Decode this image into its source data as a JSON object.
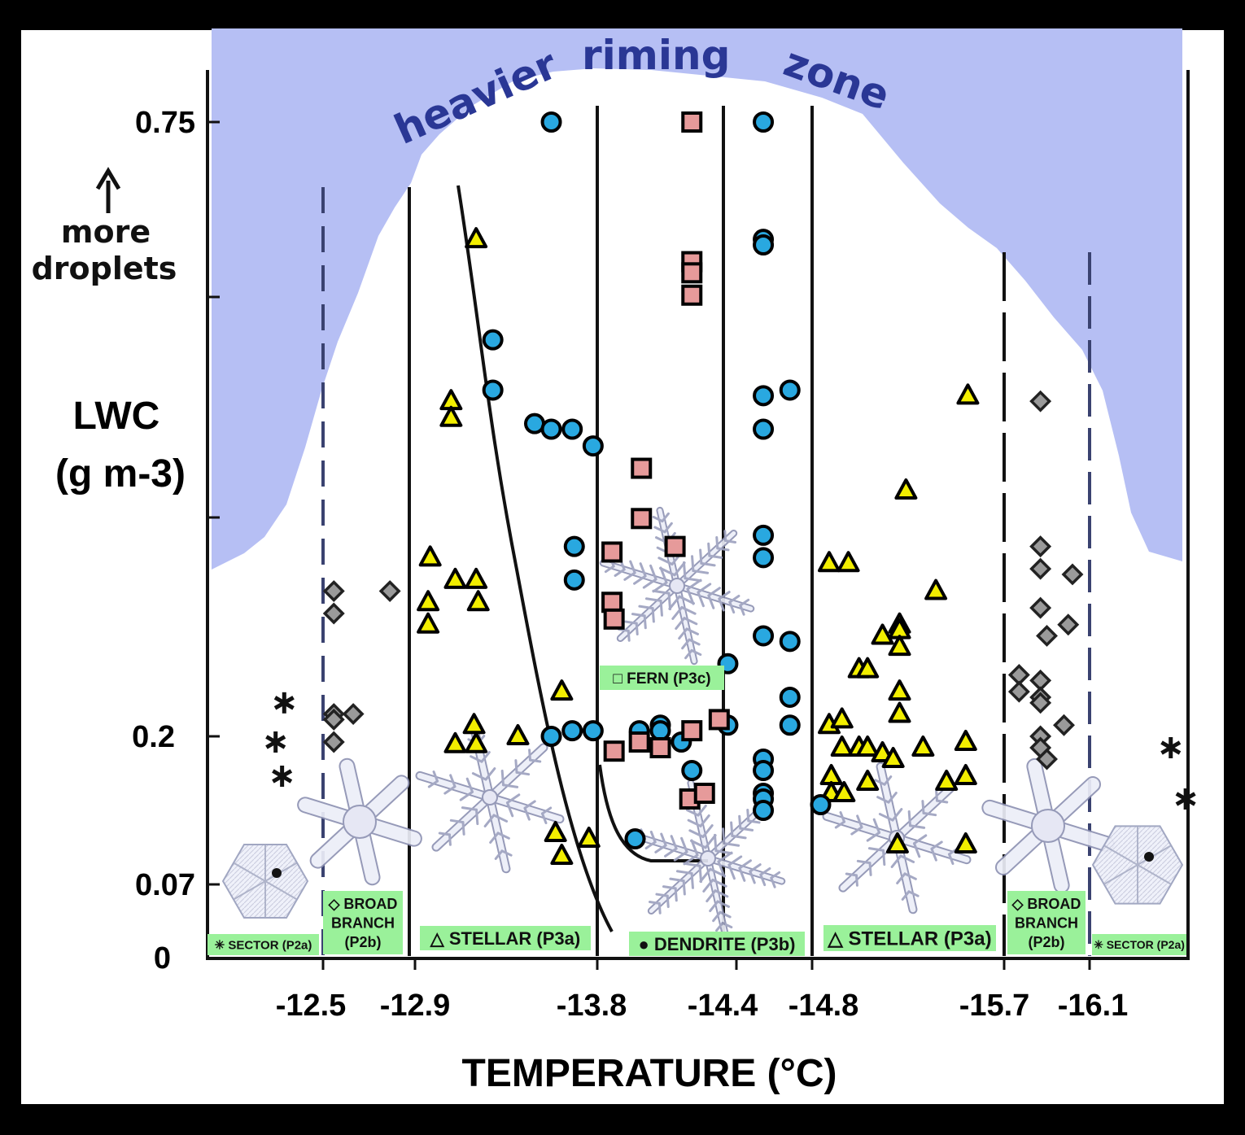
{
  "chart_data": {
    "type": "scatter",
    "title": "",
    "xlabel": "TEMPERATURE (°C)",
    "ylabel_line1": "LWC",
    "ylabel_line2": "(g m-3)",
    "y_scale": "nonlinear",
    "x_ticks": [
      "-12.5",
      "-12.9",
      "-13.8",
      "-14.4",
      "-14.8",
      "-15.7",
      "-16.1"
    ],
    "y_ticks": [
      "0.75",
      "0.2",
      "0.07",
      "0"
    ],
    "annotation_more": "more",
    "annotation_droplets": "droplets",
    "riming_zone_words": [
      "heavier",
      "riming",
      "zone"
    ],
    "colors": {
      "riming_zone": "#b6bff4",
      "circle": "#29a8e0",
      "square": "#e69a9a",
      "triangle": "#f2ee00",
      "diamond": "#9a9a9a",
      "label_bg": "#9af19a"
    },
    "regions": [
      {
        "line1": "✳ SECTOR (P2a)",
        "line2": "",
        "line3": ""
      },
      {
        "line1": "◇ BROAD",
        "line2": "BRANCH",
        "line3": "(P2b)"
      },
      {
        "line1": "△ STELLAR (P3a)",
        "line2": "",
        "line3": ""
      },
      {
        "line1": "● DENDRITE (P3b)",
        "line2": "",
        "line3": ""
      },
      {
        "line1": "△ STELLAR (P3a)",
        "line2": "",
        "line3": ""
      },
      {
        "line1": "◇ BROAD",
        "line2": "BRANCH",
        "line3": "(P2b)"
      },
      {
        "line1": "✳ SECTOR (P2a)",
        "line2": "",
        "line3": ""
      },
      {
        "line1": "□ FERN (P3c)",
        "line2": "",
        "line3": ""
      }
    ],
    "series": [
      {
        "name": "SECTOR (P2a)",
        "marker": "star",
        "points": [
          [
            -12.32,
            0.23
          ],
          [
            -12.28,
            0.195
          ],
          [
            -12.31,
            0.165
          ],
          [
            -16.48,
            0.19
          ],
          [
            -16.55,
            0.145
          ]
        ]
      },
      {
        "name": "BROAD BRANCH (P2b)",
        "marker": "diamond",
        "points": [
          [
            -12.55,
            0.33
          ],
          [
            -12.55,
            0.31
          ],
          [
            -12.55,
            0.22
          ],
          [
            -12.55,
            0.215
          ],
          [
            -12.55,
            0.195
          ],
          [
            -12.64,
            0.22
          ],
          [
            -12.81,
            0.33
          ],
          [
            -15.77,
            0.255
          ],
          [
            -15.77,
            0.24
          ],
          [
            -15.87,
            0.5
          ],
          [
            -15.87,
            0.37
          ],
          [
            -15.87,
            0.35
          ],
          [
            -15.87,
            0.315
          ],
          [
            -15.87,
            0.25
          ],
          [
            -15.87,
            0.235
          ],
          [
            -15.87,
            0.23
          ],
          [
            -15.87,
            0.2
          ],
          [
            -15.87,
            0.19
          ],
          [
            -15.9,
            0.18
          ],
          [
            -15.9,
            0.29
          ],
          [
            -15.98,
            0.21
          ],
          [
            -16.0,
            0.3
          ],
          [
            -16.02,
            0.345
          ]
        ]
      },
      {
        "name": "STELLAR (P3a)",
        "marker": "triangle",
        "points": [
          [
            -13.0,
            0.36
          ],
          [
            -12.99,
            0.32
          ],
          [
            -12.99,
            0.3
          ],
          [
            -13.1,
            0.5
          ],
          [
            -13.1,
            0.485
          ],
          [
            -13.12,
            0.34
          ],
          [
            -13.22,
            0.34
          ],
          [
            -13.23,
            0.32
          ],
          [
            -13.22,
            0.645
          ],
          [
            -13.21,
            0.21
          ],
          [
            -13.12,
            0.193
          ],
          [
            -13.22,
            0.193
          ],
          [
            -13.42,
            0.2
          ],
          [
            -13.63,
            0.24
          ],
          [
            -13.6,
            0.115
          ],
          [
            -13.76,
            0.11
          ],
          [
            -13.63,
            0.095
          ],
          [
            -14.88,
            0.355
          ],
          [
            -14.97,
            0.355
          ],
          [
            -14.88,
            0.21
          ],
          [
            -14.94,
            0.215
          ],
          [
            -14.94,
            0.19
          ],
          [
            -14.89,
            0.165
          ],
          [
            -14.89,
            0.15
          ],
          [
            -14.95,
            0.15
          ],
          [
            -15.02,
            0.26
          ],
          [
            -15.02,
            0.19
          ],
          [
            -15.06,
            0.26
          ],
          [
            -15.06,
            0.19
          ],
          [
            -15.06,
            0.16
          ],
          [
            -15.13,
            0.29
          ],
          [
            -15.13,
            0.185
          ],
          [
            -15.18,
            0.18
          ],
          [
            -15.21,
            0.3
          ],
          [
            -15.21,
            0.295
          ],
          [
            -15.21,
            0.28
          ],
          [
            -15.21,
            0.24
          ],
          [
            -15.21,
            0.22
          ],
          [
            -15.2,
            0.105
          ],
          [
            -15.24,
            0.42
          ],
          [
            -15.38,
            0.33
          ],
          [
            -15.32,
            0.19
          ],
          [
            -15.43,
            0.16
          ],
          [
            -15.52,
            0.195
          ],
          [
            -15.52,
            0.165
          ],
          [
            -15.52,
            0.105
          ],
          [
            -15.53,
            0.505
          ]
        ]
      },
      {
        "name": "DENDRITE (P3b)",
        "marker": "circle",
        "points": [
          [
            -13.3,
            0.555
          ],
          [
            -13.3,
            0.51
          ],
          [
            -13.5,
            0.48
          ],
          [
            -13.58,
            0.475
          ],
          [
            -13.68,
            0.475
          ],
          [
            -13.78,
            0.46
          ],
          [
            -13.69,
            0.37
          ],
          [
            -13.69,
            0.34
          ],
          [
            -13.58,
            0.75
          ],
          [
            -13.58,
            0.2
          ],
          [
            -13.68,
            0.205
          ],
          [
            -13.78,
            0.205
          ],
          [
            -14.0,
            0.205
          ],
          [
            -14.1,
            0.21
          ],
          [
            -14.1,
            0.205
          ],
          [
            -14.2,
            0.195
          ],
          [
            -13.98,
            0.11
          ],
          [
            -14.25,
            0.17
          ],
          [
            -14.42,
            0.265
          ],
          [
            -14.42,
            0.21
          ],
          [
            -14.58,
            0.75
          ],
          [
            -14.58,
            0.645
          ],
          [
            -14.58,
            0.64
          ],
          [
            -14.58,
            0.505
          ],
          [
            -14.58,
            0.475
          ],
          [
            -14.58,
            0.38
          ],
          [
            -14.58,
            0.36
          ],
          [
            -14.58,
            0.29
          ],
          [
            -14.58,
            0.18
          ],
          [
            -14.58,
            0.17
          ],
          [
            -14.58,
            0.15
          ],
          [
            -14.58,
            0.145
          ],
          [
            -14.58,
            0.135
          ],
          [
            -14.7,
            0.51
          ],
          [
            -14.7,
            0.285
          ],
          [
            -14.7,
            0.235
          ],
          [
            -14.7,
            0.21
          ],
          [
            -14.84,
            0.14
          ]
        ]
      },
      {
        "name": "FERN (P3c)",
        "marker": "square",
        "points": [
          [
            -14.25,
            0.75
          ],
          [
            -14.25,
            0.625
          ],
          [
            -14.25,
            0.615
          ],
          [
            -14.25,
            0.595
          ],
          [
            -14.01,
            0.44
          ],
          [
            -14.01,
            0.395
          ],
          [
            -13.87,
            0.365
          ],
          [
            -14.17,
            0.37
          ],
          [
            -13.87,
            0.32
          ],
          [
            -13.88,
            0.305
          ],
          [
            -13.88,
            0.187
          ],
          [
            -14.0,
            0.195
          ],
          [
            -14.1,
            0.19
          ],
          [
            -14.25,
            0.205
          ],
          [
            -14.38,
            0.215
          ],
          [
            -14.24,
            0.145
          ],
          [
            -14.31,
            0.15
          ]
        ]
      }
    ]
  }
}
